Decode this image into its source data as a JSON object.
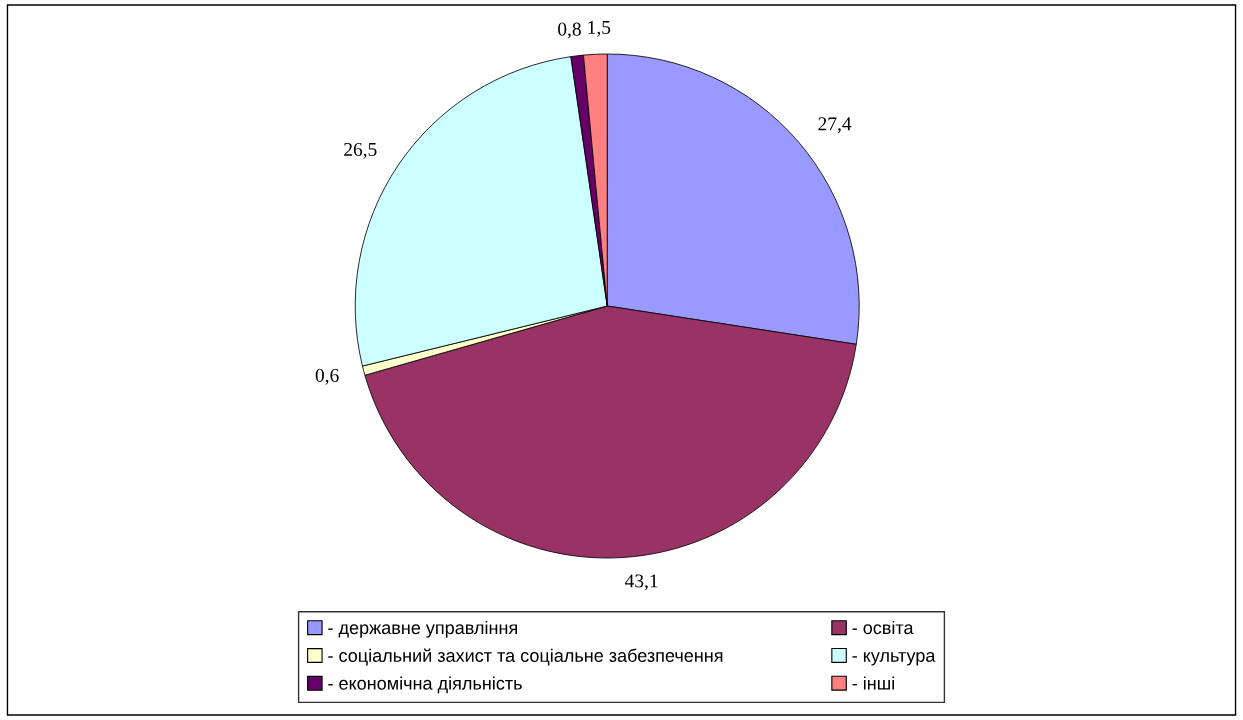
{
  "chart_data": {
    "type": "pie",
    "categories": [
      "- державне управління",
      "- освіта",
      "- соціальний захист та соціальне забезпечення",
      "- культура",
      "- економічна діяльність",
      "- інші"
    ],
    "values": [
      27.4,
      43.1,
      0.6,
      26.5,
      0.8,
      1.5
    ],
    "value_labels": [
      "27,4",
      "43,1",
      "0,6",
      "26,5",
      "0,8",
      "1,5"
    ],
    "colors": [
      "#9999ff",
      "#993366",
      "#ffffcc",
      "#ccffff",
      "#660066",
      "#ff8080"
    ],
    "legend": "bottom"
  }
}
